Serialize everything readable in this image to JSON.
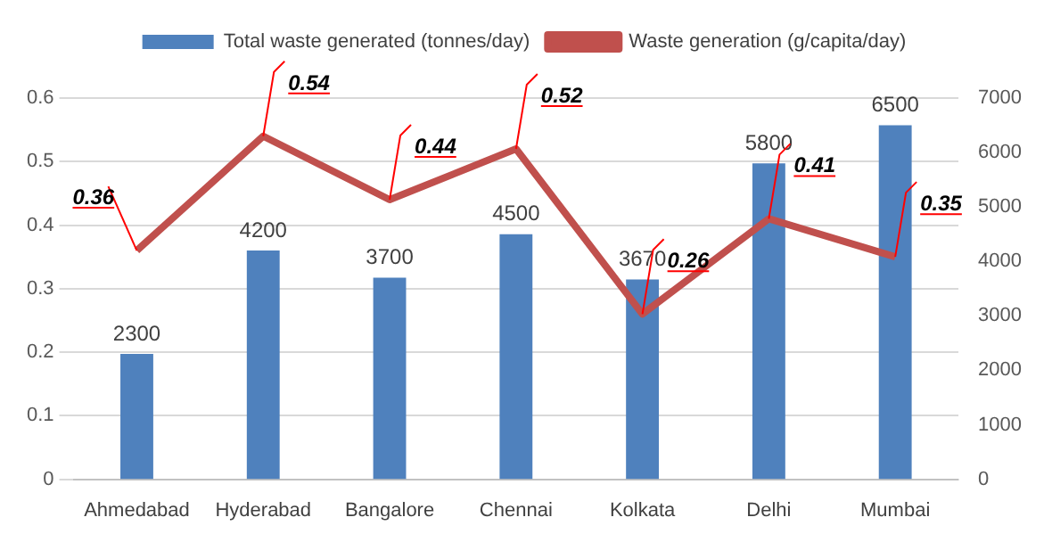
{
  "chart_data": {
    "type": "bar",
    "categories": [
      "Ahmedabad",
      "Hyderabad",
      "Bangalore",
      "Chennai",
      "Kolkata",
      "Delhi",
      "Mumbai"
    ],
    "series": [
      {
        "name": "Total waste generated (tonnes/day)",
        "axis": "y2",
        "color": "#4f81bd",
        "values": [
          2300,
          4200,
          3700,
          4500,
          3670,
          5800,
          6500
        ]
      },
      {
        "name": "Waste generation (g/capita/day)",
        "type": "line",
        "axis": "y",
        "color": "#c0504d",
        "values": [
          0.36,
          0.54,
          0.44,
          0.52,
          0.26,
          0.41,
          0.35
        ]
      }
    ],
    "ylim": [
      0,
      0.6
    ],
    "yticks": [
      0,
      0.1,
      0.2,
      0.3,
      0.4,
      0.5,
      0.6
    ],
    "y2lim": [
      0,
      7000
    ],
    "y2ticks": [
      0,
      1000,
      2000,
      3000,
      4000,
      5000,
      6000,
      7000
    ],
    "grid": "y",
    "legend": "top",
    "data_labels": true,
    "marker": "none"
  }
}
